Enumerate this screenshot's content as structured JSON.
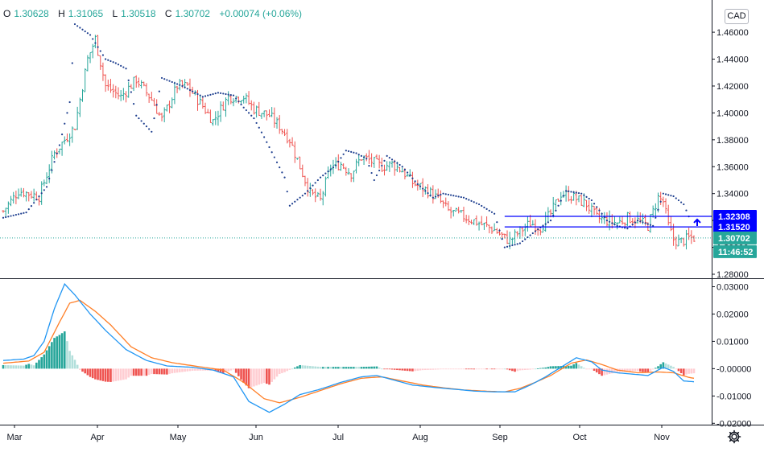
{
  "ohlc": {
    "o_label": "O",
    "o": "1.30628",
    "h_label": "H",
    "h": "1.31065",
    "l_label": "L",
    "l": "1.30518",
    "c_label": "C",
    "c": "1.30702",
    "change": "+0.00074 (+0.06%)"
  },
  "currency": "CAD",
  "colors": {
    "up": "#26a69a",
    "down": "#ef5350",
    "psar": "#1e3f8f",
    "macd": "#2196f3",
    "signal": "#ff7f27",
    "hline": "#0000ff",
    "last": "#26a69a"
  },
  "icons": {
    "settings": "gear-icon",
    "alert": "up-arrow-icon"
  },
  "chart_data": [
    {
      "type": "bar",
      "subtype": "ohlc",
      "title": "",
      "x_ticks": [
        "Mar",
        "Apr",
        "May",
        "Jun",
        "Jul",
        "Aug",
        "Sep",
        "Oct",
        "Nov"
      ],
      "y_ticks": [
        "1.46000",
        "1.44000",
        "1.42000",
        "1.40000",
        "1.38000",
        "1.36000",
        "1.34000",
        "1.32000",
        "1.30000",
        "1.28000"
      ],
      "ylim": [
        1.277,
        1.478
      ],
      "grid": false,
      "close_path": [
        [
          0,
          1.327
        ],
        [
          6,
          1.342
        ],
        [
          14,
          1.338
        ],
        [
          20,
          1.37
        ],
        [
          28,
          1.39
        ],
        [
          33,
          1.44
        ],
        [
          36,
          1.455
        ],
        [
          40,
          1.42
        ],
        [
          46,
          1.412
        ],
        [
          52,
          1.425
        ],
        [
          58,
          1.41
        ],
        [
          62,
          1.395
        ],
        [
          68,
          1.42
        ],
        [
          72,
          1.42
        ],
        [
          78,
          1.405
        ],
        [
          82,
          1.394
        ],
        [
          88,
          1.412
        ],
        [
          94,
          1.412
        ],
        [
          98,
          1.403
        ],
        [
          104,
          1.398
        ],
        [
          108,
          1.39
        ],
        [
          112,
          1.38
        ],
        [
          116,
          1.36
        ],
        [
          120,
          1.34
        ],
        [
          124,
          1.335
        ],
        [
          128,
          1.36
        ],
        [
          132,
          1.362
        ],
        [
          136,
          1.355
        ],
        [
          140,
          1.367
        ],
        [
          143,
          1.365
        ],
        [
          148,
          1.36
        ],
        [
          152,
          1.362
        ],
        [
          156,
          1.357
        ],
        [
          160,
          1.348
        ],
        [
          166,
          1.342
        ],
        [
          170,
          1.336
        ],
        [
          174,
          1.327
        ],
        [
          180,
          1.323
        ],
        [
          186,
          1.318
        ],
        [
          192,
          1.313
        ],
        [
          196,
          1.307
        ],
        [
          198,
          1.305
        ],
        [
          202,
          1.312
        ],
        [
          206,
          1.318
        ],
        [
          210,
          1.315
        ],
        [
          214,
          1.325
        ],
        [
          218,
          1.34
        ],
        [
          222,
          1.338
        ],
        [
          228,
          1.332
        ],
        [
          232,
          1.322
        ],
        [
          236,
          1.32
        ],
        [
          240,
          1.318
        ],
        [
          244,
          1.322
        ],
        [
          248,
          1.32
        ],
        [
          252,
          1.316
        ],
        [
          256,
          1.337
        ],
        [
          258,
          1.334
        ],
        [
          260,
          1.316
        ],
        [
          262,
          1.306
        ],
        [
          264,
          1.304
        ],
        [
          266,
          1.305
        ],
        [
          268,
          1.307
        ]
      ],
      "parabolic_sar": [
        [
          0,
          1.322
        ],
        [
          9,
          1.326
        ],
        [
          17,
          1.345
        ],
        [
          22,
          1.376
        ],
        [
          26,
          1.408
        ],
        [
          28,
          1.466
        ],
        [
          34,
          1.458
        ],
        [
          40,
          1.44
        ],
        [
          44,
          1.437
        ],
        [
          48,
          1.433
        ],
        [
          52,
          1.398
        ],
        [
          56,
          1.39
        ],
        [
          58,
          1.386
        ],
        [
          62,
          1.426
        ],
        [
          70,
          1.42
        ],
        [
          78,
          1.412
        ],
        [
          84,
          1.415
        ],
        [
          90,
          1.413
        ],
        [
          94,
          1.404
        ],
        [
          98,
          1.396
        ],
        [
          102,
          1.382
        ],
        [
          106,
          1.367
        ],
        [
          110,
          1.352
        ],
        [
          112,
          1.331
        ],
        [
          118,
          1.34
        ],
        [
          124,
          1.352
        ],
        [
          130,
          1.361
        ],
        [
          134,
          1.372
        ],
        [
          138,
          1.37
        ],
        [
          142,
          1.366
        ],
        [
          145,
          1.35
        ],
        [
          150,
          1.368
        ],
        [
          156,
          1.36
        ],
        [
          162,
          1.347
        ],
        [
          168,
          1.337
        ],
        [
          172,
          1.34
        ],
        [
          180,
          1.337
        ],
        [
          186,
          1.332
        ],
        [
          192,
          1.325
        ],
        [
          196,
          1.3
        ],
        [
          202,
          1.303
        ],
        [
          208,
          1.312
        ],
        [
          214,
          1.32
        ],
        [
          220,
          1.342
        ],
        [
          226,
          1.34
        ],
        [
          230,
          1.335
        ],
        [
          236,
          1.32
        ],
        [
          240,
          1.316
        ],
        [
          244,
          1.314
        ],
        [
          248,
          1.32
        ],
        [
          254,
          1.316
        ],
        [
          258,
          1.34
        ],
        [
          262,
          1.338
        ],
        [
          266,
          1.332
        ],
        [
          268,
          1.323
        ]
      ],
      "horizontal_lines": [
        {
          "label": "1.32308",
          "value": 1.32308,
          "x_start": 196
        },
        {
          "label": "1.31520",
          "value": 1.3152,
          "x_start": 196
        }
      ],
      "last_price": {
        "label": "1.30702",
        "value": 1.30702,
        "countdown": "11:46:52"
      }
    },
    {
      "type": "line",
      "title": "",
      "y_ticks": [
        "0.03000",
        "0.02000",
        "0.01000",
        "-0.00000",
        "-0.01000",
        "-0.02000"
      ],
      "ylim": [
        -0.0205,
        0.0325
      ],
      "series": [
        {
          "color": "#2196f3",
          "points": [
            [
              0,
              0.003
            ],
            [
              8,
              0.0035
            ],
            [
              12,
              0.0048
            ],
            [
              16,
              0.01
            ],
            [
              20,
              0.022
            ],
            [
              24,
              0.031
            ],
            [
              28,
              0.027
            ],
            [
              34,
              0.02
            ],
            [
              40,
              0.014
            ],
            [
              48,
              0.007
            ],
            [
              56,
              0.003
            ],
            [
              64,
              0.001
            ],
            [
              74,
              0.0005
            ],
            [
              82,
              -0.0005
            ],
            [
              90,
              -0.003
            ],
            [
              96,
              -0.012
            ],
            [
              104,
              -0.016
            ],
            [
              110,
              -0.013
            ],
            [
              116,
              -0.0095
            ],
            [
              124,
              -0.0075
            ],
            [
              132,
              -0.005
            ],
            [
              140,
              -0.003
            ],
            [
              146,
              -0.0025
            ],
            [
              152,
              -0.004
            ],
            [
              160,
              -0.006
            ],
            [
              168,
              -0.0068
            ],
            [
              176,
              -0.0075
            ],
            [
              184,
              -0.0082
            ],
            [
              192,
              -0.0085
            ],
            [
              200,
              -0.0085
            ],
            [
              206,
              -0.006
            ],
            [
              212,
              -0.003
            ],
            [
              218,
              0.0005
            ],
            [
              224,
              0.004
            ],
            [
              230,
              0.0025
            ],
            [
              234,
              -0.0005
            ],
            [
              240,
              -0.0015
            ],
            [
              246,
              -0.002
            ],
            [
              252,
              -0.0025
            ],
            [
              258,
              0.0005
            ],
            [
              262,
              -0.001
            ],
            [
              266,
              -0.0045
            ],
            [
              270,
              -0.0048
            ]
          ]
        },
        {
          "color": "#ff7f27",
          "points": [
            [
              0,
              0.002
            ],
            [
              10,
              0.0028
            ],
            [
              16,
              0.006
            ],
            [
              22,
              0.017
            ],
            [
              26,
              0.024
            ],
            [
              30,
              0.025
            ],
            [
              36,
              0.021
            ],
            [
              42,
              0.016
            ],
            [
              50,
              0.008
            ],
            [
              58,
              0.004
            ],
            [
              66,
              0.0022
            ],
            [
              76,
              0.0008
            ],
            [
              86,
              -0.0005
            ],
            [
              94,
              -0.005
            ],
            [
              102,
              -0.011
            ],
            [
              108,
              -0.0125
            ],
            [
              116,
              -0.0105
            ],
            [
              124,
              -0.008
            ],
            [
              132,
              -0.0055
            ],
            [
              140,
              -0.0035
            ],
            [
              148,
              -0.003
            ],
            [
              156,
              -0.0045
            ],
            [
              164,
              -0.006
            ],
            [
              172,
              -0.007
            ],
            [
              180,
              -0.0078
            ],
            [
              188,
              -0.0082
            ],
            [
              196,
              -0.0085
            ],
            [
              202,
              -0.0072
            ],
            [
              208,
              -0.005
            ],
            [
              214,
              -0.0025
            ],
            [
              222,
              0.002
            ],
            [
              228,
              0.0032
            ],
            [
              234,
              0.0015
            ],
            [
              240,
              -0.0005
            ],
            [
              248,
              -0.0015
            ],
            [
              256,
              -0.0012
            ],
            [
              262,
              -0.0015
            ],
            [
              268,
              -0.0032
            ],
            [
              270,
              -0.0035
            ]
          ]
        }
      ]
    }
  ]
}
